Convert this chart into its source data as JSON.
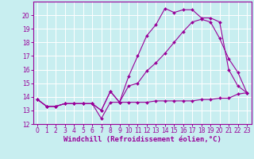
{
  "title": "",
  "xlabel": "Windchill (Refroidissement éolien,°C)",
  "ylabel": "",
  "xlim": [
    -0.5,
    23.5
  ],
  "ylim": [
    12,
    21
  ],
  "yticks": [
    12,
    13,
    14,
    15,
    16,
    17,
    18,
    19,
    20
  ],
  "xticks": [
    0,
    1,
    2,
    3,
    4,
    5,
    6,
    7,
    8,
    9,
    10,
    11,
    12,
    13,
    14,
    15,
    16,
    17,
    18,
    19,
    20,
    21,
    22,
    23
  ],
  "background_color": "#c8eef0",
  "grid_color": "#ffffff",
  "line_color": "#990099",
  "series": [
    {
      "x": [
        0,
        1,
        2,
        3,
        4,
        5,
        6,
        7,
        8,
        9,
        10,
        11,
        12,
        13,
        14,
        15,
        16,
        17,
        18,
        19,
        20,
        21,
        22,
        23
      ],
      "y": [
        13.8,
        13.3,
        13.3,
        13.5,
        13.5,
        13.5,
        13.5,
        12.4,
        13.6,
        13.6,
        13.6,
        13.6,
        13.6,
        13.7,
        13.7,
        13.7,
        13.7,
        13.7,
        13.8,
        13.8,
        13.9,
        13.9,
        14.2,
        14.3
      ]
    },
    {
      "x": [
        0,
        1,
        2,
        3,
        4,
        5,
        6,
        7,
        8,
        9,
        10,
        11,
        12,
        13,
        14,
        15,
        16,
        17,
        18,
        19,
        20,
        21,
        22,
        23
      ],
      "y": [
        13.8,
        13.3,
        13.3,
        13.5,
        13.5,
        13.5,
        13.5,
        13.0,
        14.4,
        13.6,
        14.8,
        15.0,
        15.9,
        16.5,
        17.2,
        18.0,
        18.8,
        19.5,
        19.7,
        19.5,
        18.3,
        16.8,
        15.8,
        14.3
      ]
    },
    {
      "x": [
        0,
        1,
        2,
        3,
        4,
        5,
        6,
        7,
        8,
        9,
        10,
        11,
        12,
        13,
        14,
        15,
        16,
        17,
        18,
        19,
        20,
        21,
        22,
        23
      ],
      "y": [
        13.8,
        13.3,
        13.3,
        13.5,
        13.5,
        13.5,
        13.5,
        13.0,
        14.4,
        13.6,
        15.5,
        17.0,
        18.5,
        19.3,
        20.5,
        20.2,
        20.4,
        20.4,
        19.8,
        19.8,
        19.5,
        16.0,
        14.8,
        14.3
      ]
    }
  ],
  "tick_fontsize": 5.5,
  "xlabel_fontsize": 6.5
}
